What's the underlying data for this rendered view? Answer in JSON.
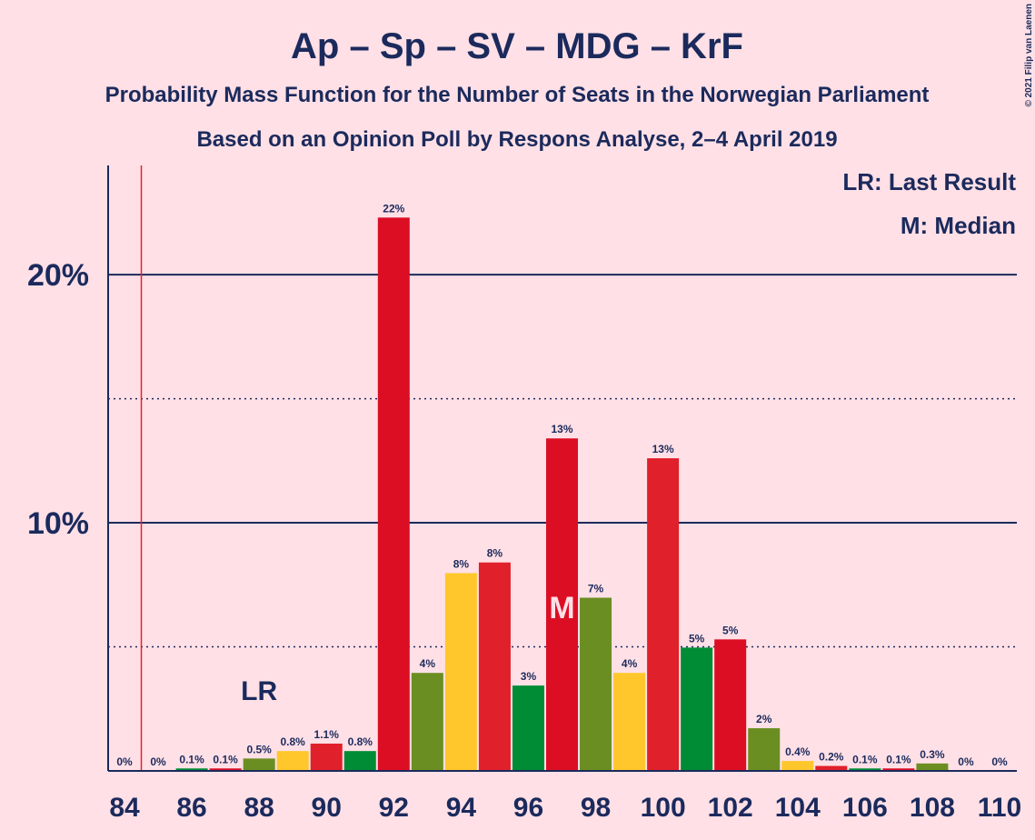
{
  "chart_data": {
    "type": "bar",
    "title": "Ap – Sp – SV – MDG – KrF",
    "subtitle": "Probability Mass Function for the Number of Seats in the Norwegian Parliament",
    "subtitle2": "Based on an Opinion Poll by Respons Analyse, 2–4 April 2019",
    "copyright": "© 2021 Filip van Laenen",
    "categories": [
      84,
      null,
      86,
      null,
      88,
      null,
      90,
      null,
      92,
      null,
      94,
      null,
      96,
      null,
      98,
      null,
      100,
      null,
      102,
      null,
      104,
      null,
      106,
      null,
      108,
      null,
      110
    ],
    "values": [
      0,
      0,
      0.1,
      0.1,
      0.5,
      0.8,
      1.1,
      0.8,
      22.3,
      3.95,
      7.97,
      8.4,
      3.44,
      13.4,
      6.98,
      3.95,
      12.6,
      4.97,
      5.3,
      1.72,
      0.4,
      0.2,
      0.1,
      0.1,
      0.3,
      0,
      0
    ],
    "value_labels": [
      "0%",
      "0%",
      "0.1%",
      "0.1%",
      "0.5%",
      "0.8%",
      "1.1%",
      "0.8%",
      "22%",
      "4%",
      "8%",
      "8%",
      "3%",
      "13%",
      "7%",
      "4%",
      "13%",
      "5%",
      "5%",
      "2%",
      "0.4%",
      "0.2%",
      "0.1%",
      "0.1%",
      "0.3%",
      "0%",
      "0%"
    ],
    "colors": [
      "#ffc72c",
      "#e0202a",
      "#008c35",
      "#dc0e24",
      "#6b8e23",
      "#ffc72c",
      "#e0202a",
      "#008c35",
      "#dc0e24",
      "#6b8e23",
      "#ffc72c",
      "#e0202a",
      "#008c35",
      "#dc0e24",
      "#6b8e23",
      "#ffc72c",
      "#e0202a",
      "#008c35",
      "#dc0e24",
      "#6b8e23",
      "#ffc72c",
      "#e0202a",
      "#008c35",
      "#dc0e24",
      "#6b8e23",
      "#ffc72c",
      "#e0202a"
    ],
    "ylim": [
      0,
      24.4
    ],
    "yticks": [
      {
        "value": 10,
        "label": "10%"
      },
      {
        "value": 20,
        "label": "20%"
      }
    ],
    "minor_yticks": [
      5,
      15
    ],
    "grid": true,
    "majority_index": 1,
    "last_result_index": 4,
    "last_result_label": "LR",
    "median_index": 13,
    "median_label": "M",
    "legend": [
      "LR: Last Result",
      "M: Median"
    ]
  }
}
